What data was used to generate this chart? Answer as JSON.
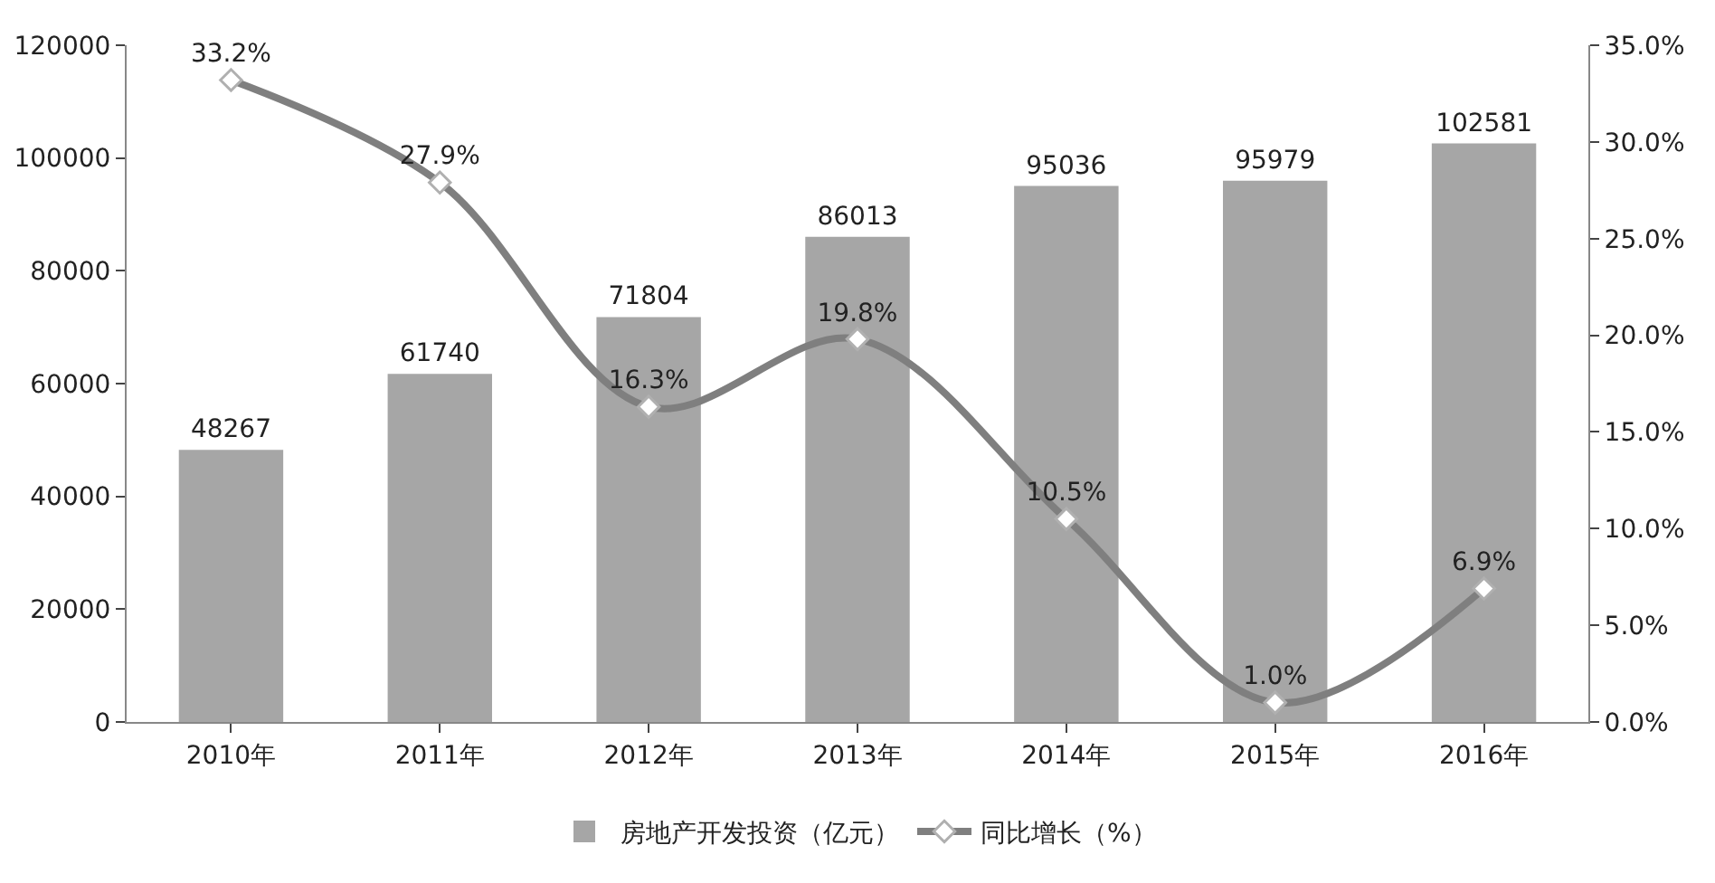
{
  "chart_data": {
    "type": "bar",
    "categories": [
      "2010年",
      "2011年",
      "2012年",
      "2013年",
      "2014年",
      "2015年",
      "2016年"
    ],
    "series": [
      {
        "name": "房地产开发投资（亿元）",
        "color": "#a6a6a6",
        "values": [
          48267,
          61740,
          71804,
          86013,
          95036,
          95979,
          102581
        ],
        "value_labels": [
          "48267",
          "61740",
          "71804",
          "86013",
          "95036",
          "95979",
          "102581"
        ]
      },
      {
        "name": "同比增长（%）",
        "type": "line",
        "axis": "y2",
        "color": "#7f7f7f",
        "marker": "diamond",
        "values": [
          33.2,
          27.9,
          16.3,
          19.8,
          10.5,
          1.0,
          6.9
        ],
        "value_labels": [
          "33.2%",
          "27.9%",
          "16.3%",
          "19.8%",
          "10.5%",
          "1.0%",
          "6.9%"
        ]
      }
    ],
    "ylim": [
      0,
      120000
    ],
    "yticks": [
      0,
      20000,
      40000,
      60000,
      80000,
      100000,
      120000
    ],
    "y2lim": [
      0,
      35
    ],
    "y2ticks": [
      {
        "value": 0,
        "label": "0.0%"
      },
      {
        "value": 5,
        "label": "5.0%"
      },
      {
        "value": 10,
        "label": "10.0%"
      },
      {
        "value": 15,
        "label": "15.0%"
      },
      {
        "value": 20,
        "label": "20.0%"
      },
      {
        "value": 25,
        "label": "25.0%"
      },
      {
        "value": 30,
        "label": "30.0%"
      },
      {
        "value": 35,
        "label": "35.0%"
      }
    ],
    "grid": false,
    "legend": "bottom"
  }
}
